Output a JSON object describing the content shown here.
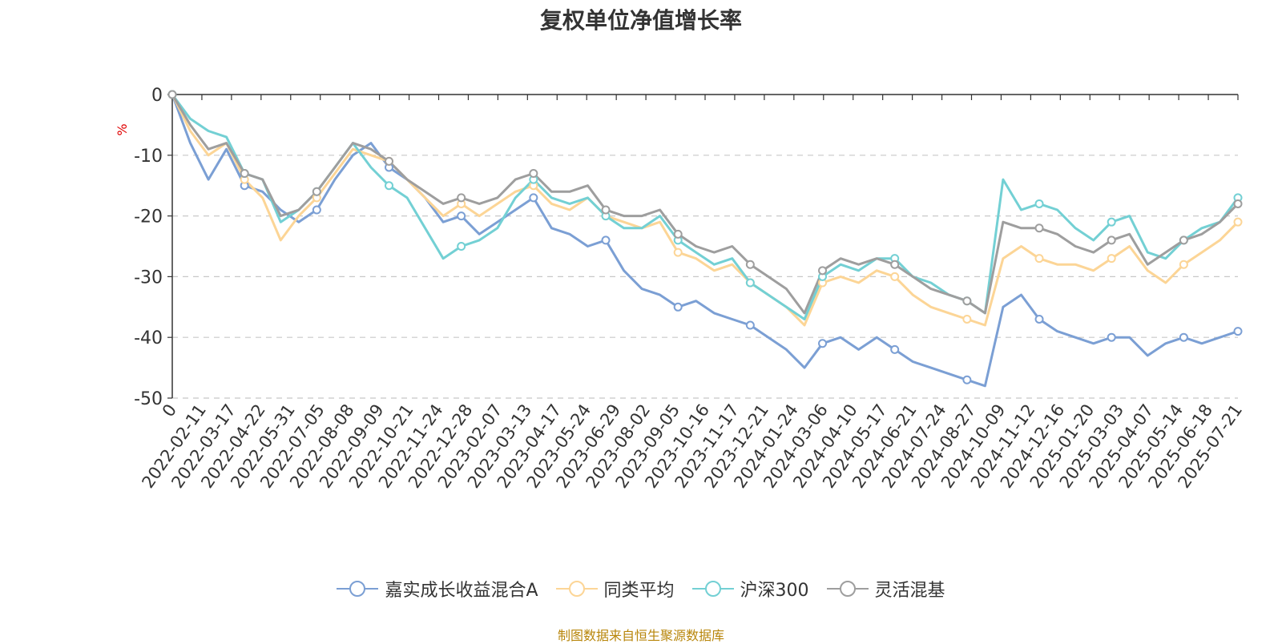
{
  "title": "复权单位净值增长率",
  "source_note": "制图数据来自恒生聚源数据库",
  "chart_data": {
    "type": "line",
    "title": "复权单位净值增长率",
    "xlabel": "",
    "ylabel": "%",
    "ylim": [
      -50,
      0
    ],
    "yticks": [
      0,
      -10,
      -20,
      -30,
      -40,
      -50
    ],
    "grid": true,
    "legend_position": "bottom",
    "x_tick_labels": [
      "0",
      "2022-02-11",
      "2022-03-17",
      "2022-04-22",
      "2022-05-31",
      "2022-07-05",
      "2022-08-08",
      "2022-09-09",
      "2022-10-21",
      "2022-11-24",
      "2022-12-28",
      "2023-02-07",
      "2023-03-13",
      "2023-04-17",
      "2023-05-24",
      "2023-06-29",
      "2023-08-02",
      "2023-09-05",
      "2023-10-16",
      "2023-11-17",
      "2023-12-21",
      "2024-01-24",
      "2024-03-06",
      "2024-04-10",
      "2024-05-17",
      "2024-06-21",
      "2024-07-24",
      "2024-08-27",
      "2024-10-09",
      "2024-11-12",
      "2024-12-16",
      "2025-01-20",
      "2025-03-03",
      "2025-04-07",
      "2025-05-14",
      "2025-06-18",
      "2025-07-21"
    ],
    "series": [
      {
        "name": "嘉实成长收益混合A",
        "color": "#7b9fd4",
        "values": [
          0,
          -8,
          -14,
          -9,
          -15,
          -16,
          -19,
          -21,
          -19,
          -14,
          -10,
          -8,
          -12,
          -14,
          -17,
          -21,
          -20,
          -23,
          -21,
          -19,
          -17,
          -22,
          -23,
          -25,
          -24,
          -29,
          -32,
          -33,
          -35,
          -34,
          -36,
          -37,
          -38,
          -40,
          -42,
          -45,
          -41,
          -40,
          -42,
          -40,
          -42,
          -44,
          -45,
          -46,
          -47,
          -48,
          -35,
          -33,
          -37,
          -39,
          -40,
          -41,
          -40,
          -40,
          -43,
          -41,
          -40,
          -41,
          -40,
          -39
        ]
      },
      {
        "name": "同类平均",
        "color": "#fcd596",
        "values": [
          0,
          -6,
          -10,
          -8,
          -14,
          -17,
          -24,
          -20,
          -17,
          -13,
          -9,
          -10,
          -11,
          -14,
          -17,
          -20,
          -18,
          -20,
          -18,
          -16,
          -15,
          -18,
          -19,
          -17,
          -20,
          -21,
          -22,
          -21,
          -26,
          -27,
          -29,
          -28,
          -31,
          -33,
          -35,
          -38,
          -31,
          -30,
          -31,
          -29,
          -30,
          -33,
          -35,
          -36,
          -37,
          -38,
          -27,
          -25,
          -27,
          -28,
          -28,
          -29,
          -27,
          -25,
          -29,
          -31,
          -28,
          -26,
          -24,
          -21
        ]
      },
      {
        "name": "沪深300",
        "color": "#73d0d4",
        "values": [
          0,
          -4,
          -6,
          -7,
          -13,
          -14,
          -21,
          -19,
          -16,
          -12,
          -8,
          -12,
          -15,
          -17,
          -22,
          -27,
          -25,
          -24,
          -22,
          -17,
          -14,
          -17,
          -18,
          -17,
          -20,
          -22,
          -22,
          -20,
          -24,
          -26,
          -28,
          -27,
          -31,
          -33,
          -35,
          -37,
          -30,
          -28,
          -29,
          -27,
          -27,
          -30,
          -31,
          -33,
          -34,
          -36,
          -14,
          -19,
          -18,
          -19,
          -22,
          -24,
          -21,
          -20,
          -26,
          -27,
          -24,
          -22,
          -21,
          -17
        ]
      },
      {
        "name": "灵活混基",
        "color": "#9e9e9e",
        "values": [
          0,
          -5,
          -9,
          -8,
          -13,
          -14,
          -20,
          -19,
          -16,
          -12,
          -8,
          -9,
          -11,
          -14,
          -16,
          -18,
          -17,
          -18,
          -17,
          -14,
          -13,
          -16,
          -16,
          -15,
          -19,
          -20,
          -20,
          -19,
          -23,
          -25,
          -26,
          -25,
          -28,
          -30,
          -32,
          -36,
          -29,
          -27,
          -28,
          -27,
          -28,
          -30,
          -32,
          -33,
          -34,
          -36,
          -21,
          -22,
          -22,
          -23,
          -25,
          -26,
          -24,
          -23,
          -28,
          -26,
          -24,
          -23,
          -21,
          -18
        ]
      }
    ]
  }
}
